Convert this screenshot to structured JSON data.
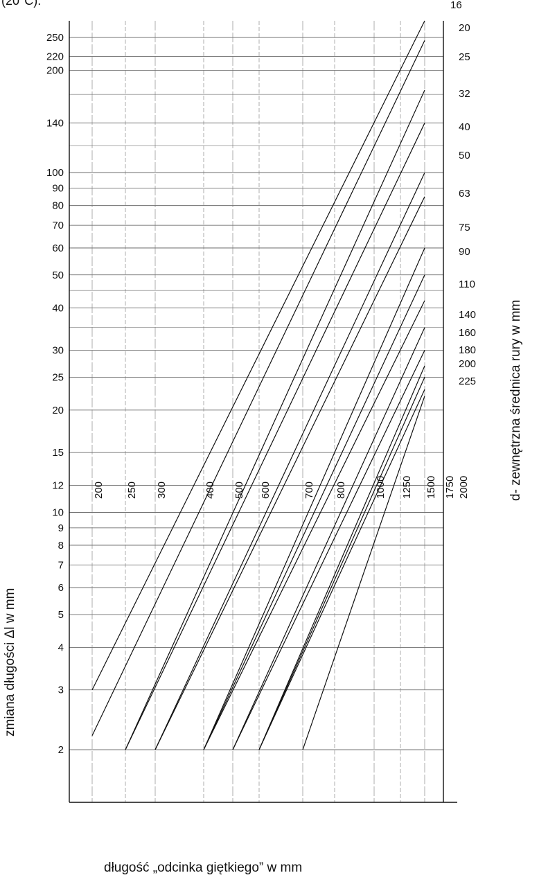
{
  "header_fragment": "(20°C).",
  "chart_data": {
    "type": "line",
    "title": "",
    "xlabel": "długość „odcinka giętkiego” w mm",
    "ylabel": "zmiana długości Δl w mm",
    "right_label": "d- zewnętrzna średnica rury w mm",
    "y_scale": "log",
    "ylim": [
      1.4,
      280
    ],
    "y_ticks": [
      2,
      3,
      4,
      5,
      6,
      7,
      8,
      9,
      10,
      12,
      15,
      20,
      25,
      30,
      40,
      50,
      60,
      70,
      80,
      90,
      100,
      140,
      200,
      220,
      250
    ],
    "x_tick_labels": [
      "200",
      "250",
      "300",
      "400",
      "500",
      "600",
      "700",
      "800",
      "1000",
      "1250",
      "1500",
      "1750",
      "2000"
    ],
    "grid": true,
    "legend": "right",
    "series": [
      {
        "name": "16",
        "points": [
          [
            200,
            3
          ],
          [
            1500,
            280
          ]
        ]
      },
      {
        "name": "20",
        "points": [
          [
            200,
            2.2
          ],
          [
            1500,
            245
          ]
        ]
      },
      {
        "name": "25",
        "points": [
          [
            250,
            2
          ],
          [
            1500,
            175
          ]
        ]
      },
      {
        "name": "32",
        "points": [
          [
            250,
            2
          ],
          [
            1500,
            140
          ]
        ]
      },
      {
        "name": "40",
        "points": [
          [
            300,
            2
          ],
          [
            1500,
            100
          ]
        ]
      },
      {
        "name": "50",
        "points": [
          [
            300,
            2
          ],
          [
            1500,
            85
          ]
        ]
      },
      {
        "name": "63",
        "points": [
          [
            400,
            2
          ],
          [
            1500,
            60
          ]
        ]
      },
      {
        "name": "75",
        "points": [
          [
            400,
            2
          ],
          [
            1500,
            50
          ]
        ]
      },
      {
        "name": "90",
        "points": [
          [
            400,
            2
          ],
          [
            1500,
            42
          ]
        ]
      },
      {
        "name": "110",
        "points": [
          [
            500,
            2
          ],
          [
            1500,
            35
          ]
        ]
      },
      {
        "name": "140",
        "points": [
          [
            500,
            2
          ],
          [
            1500,
            30
          ]
        ]
      },
      {
        "name": "160",
        "points": [
          [
            600,
            2
          ],
          [
            1500,
            27
          ]
        ]
      },
      {
        "name": "180",
        "points": [
          [
            600,
            2
          ],
          [
            1500,
            25
          ]
        ]
      },
      {
        "name": "200",
        "points": [
          [
            600,
            2
          ],
          [
            1500,
            23
          ]
        ]
      },
      {
        "name": "225",
        "points": [
          [
            700,
            2
          ],
          [
            1500,
            22
          ]
        ]
      }
    ]
  }
}
